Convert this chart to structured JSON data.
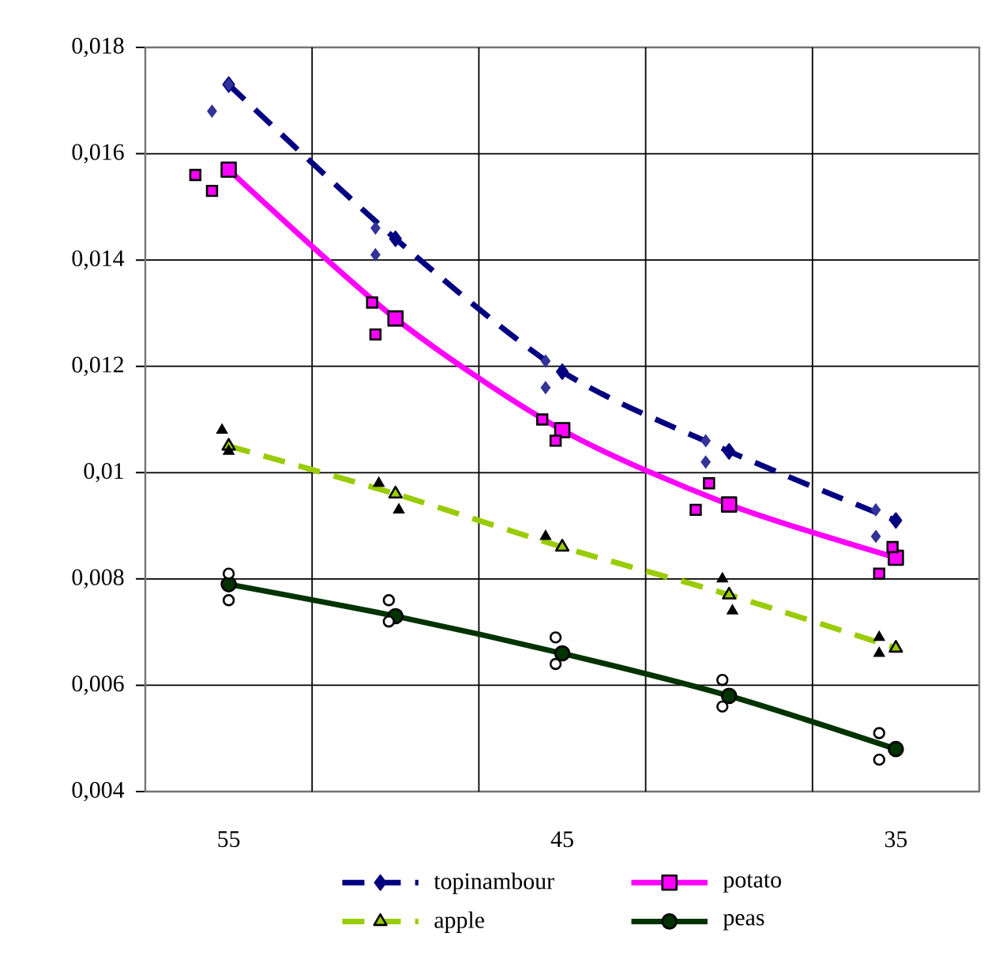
{
  "chart_data": {
    "type": "line",
    "xlim": [
      57.5,
      32.5
    ],
    "xticks": [
      55,
      45,
      35,
      {
        "value": 52.5,
        "label": null
      },
      {
        "value": 47.5,
        "label": null
      },
      {
        "value": 42.5,
        "label": null
      },
      {
        "value": 37.5,
        "label": null
      }
    ],
    "ylim": [
      0.004,
      0.018
    ],
    "yticks": [
      {
        "value": 0.004,
        "label": "0,004"
      },
      {
        "value": 0.006,
        "label": "0,006"
      },
      {
        "value": 0.008,
        "label": "0,008"
      },
      {
        "value": 0.01,
        "label": "0,01"
      },
      {
        "value": 0.012,
        "label": "0,012"
      },
      {
        "value": 0.014,
        "label": "0,014"
      },
      {
        "value": 0.016,
        "label": "0,016"
      },
      {
        "value": 0.018,
        "label": "0,018"
      }
    ],
    "grid": true,
    "legend": "bottom",
    "series": [
      {
        "name": "topinambour",
        "color": "#000080",
        "marker": "diamond",
        "line_style": "dashed",
        "x": [
          55,
          50,
          45,
          40,
          35
        ],
        "values": [
          0.0173,
          0.0144,
          0.0119,
          0.0104,
          0.0091
        ]
      },
      {
        "name": "potato",
        "color": "#ff00ff",
        "marker": "square",
        "line_style": "solid",
        "x": [
          55,
          50,
          45,
          40,
          35
        ],
        "values": [
          0.0157,
          0.0129,
          0.0108,
          0.0094,
          0.0084
        ]
      },
      {
        "name": "apple",
        "color": "#99cc00",
        "marker": "triangle",
        "line_style": "dashed",
        "x": [
          55,
          50,
          45,
          40,
          35
        ],
        "values": [
          0.0105,
          0.0096,
          0.0086,
          0.0077,
          0.0067
        ]
      },
      {
        "name": "peas",
        "color": "#003300",
        "marker": "circle",
        "line_style": "solid",
        "x": [
          55,
          50,
          45,
          40,
          35
        ],
        "values": [
          0.0079,
          0.0073,
          0.0066,
          0.0058,
          0.0048
        ]
      },
      {
        "type": "scatter",
        "color": "#333399",
        "marker": "diamond",
        "x": [
          55.5,
          55,
          50.6,
          50.6,
          45.5,
          45.5,
          40.7,
          40.7,
          35.6,
          35.6
        ],
        "values": [
          0.0168,
          0.0173,
          0.0146,
          0.0141,
          0.0121,
          0.0116,
          0.0106,
          0.0102,
          0.0093,
          0.0088
        ]
      },
      {
        "type": "scatter",
        "color": "#ff00ff",
        "marker": "square",
        "x": [
          56,
          55.5,
          50.7,
          50.6,
          45.6,
          45.2,
          40.6,
          41,
          35.1,
          35.5
        ],
        "values": [
          0.0156,
          0.0153,
          0.0132,
          0.0126,
          0.011,
          0.0106,
          0.0098,
          0.0093,
          0.0086,
          0.0081
        ]
      },
      {
        "type": "scatter",
        "color": "#000000",
        "marker": "triangle",
        "x": [
          55.2,
          55,
          50.5,
          49.9,
          45.5,
          40.2,
          39.9,
          35.5,
          35.5
        ],
        "values": [
          0.0108,
          0.0104,
          0.0098,
          0.0093,
          0.0088,
          0.008,
          0.0074,
          0.0069,
          0.0066
        ]
      },
      {
        "type": "scatter",
        "color": "#ffffff",
        "marker": "circle",
        "x": [
          55,
          55,
          50.2,
          50.2,
          45.2,
          45.2,
          40.2,
          40.2,
          35.5,
          35.5
        ],
        "values": [
          0.0081,
          0.0076,
          0.0076,
          0.0072,
          0.0069,
          0.0064,
          0.0061,
          0.0056,
          0.0051,
          0.0046
        ]
      }
    ]
  }
}
